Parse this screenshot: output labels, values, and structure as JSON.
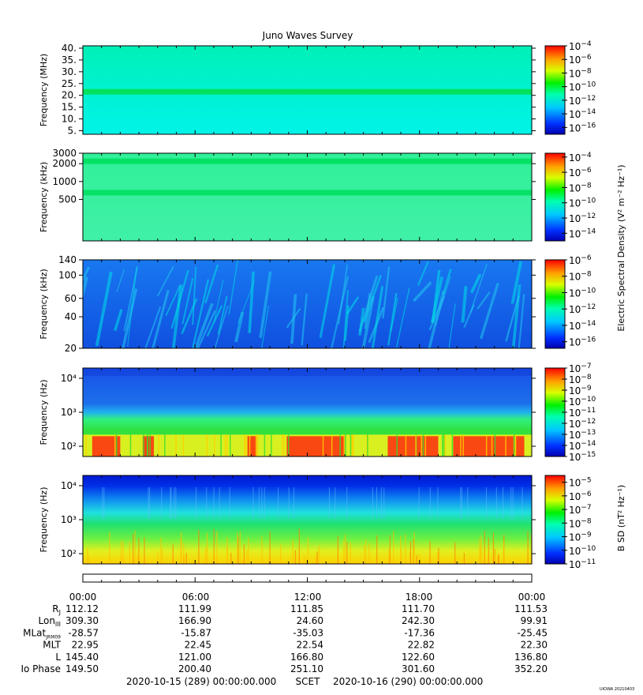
{
  "title": "Juno Waves Survey",
  "footer": {
    "start": "2020-10-15 (289) 00:00:00.000",
    "scet": "SCET",
    "end": "2020-10-16 (290) 00:00:00.000",
    "credit": "UIOWA 20210403"
  },
  "colorbar_titles": {
    "electric": "Electric Spectral Density (V² m⁻² Hz⁻¹)",
    "magnetic": "B SD (nT² Hz⁻¹)"
  },
  "ephemeris": {
    "times": [
      "00:00",
      "06:00",
      "12:00",
      "18:00",
      "00:00"
    ],
    "rows": [
      {
        "label": "R",
        "sub": "J",
        "values": [
          "112.12",
          "111.99",
          "111.85",
          "111.70",
          "111.53"
        ]
      },
      {
        "label": "Lon",
        "sub": "III",
        "values": [
          "309.30",
          "166.90",
          "24.60",
          "242.30",
          "99.91"
        ]
      },
      {
        "label": "MLat",
        "sub": "JRM09",
        "values": [
          "-28.57",
          "-15.87",
          "-35.03",
          "-17.36",
          "-25.45"
        ]
      },
      {
        "label": "MLT",
        "sub": "",
        "values": [
          "22.95",
          "22.45",
          "22.54",
          "22.82",
          "22.30"
        ]
      },
      {
        "label": "L",
        "sub": "",
        "values": [
          "145.40",
          "121.00",
          "166.80",
          "122.60",
          "136.80"
        ]
      },
      {
        "label": "Io Phase",
        "sub": "",
        "values": [
          "149.50",
          "200.40",
          "251.10",
          "301.60",
          "352.20"
        ]
      }
    ]
  },
  "chart_data": [
    {
      "type": "heatmap",
      "ylabel": "Frequency (MHz)",
      "yscale": "linear",
      "ylim": [
        3.5,
        41
      ],
      "yticks": [
        {
          "v": 5,
          "t": "5."
        },
        {
          "v": 10,
          "t": "10."
        },
        {
          "v": 15,
          "t": "15."
        },
        {
          "v": 20,
          "t": "20."
        },
        {
          "v": 25,
          "t": "25."
        },
        {
          "v": 30,
          "t": "30."
        },
        {
          "v": 35,
          "t": "35."
        },
        {
          "v": 40,
          "t": "40."
        }
      ],
      "xlim_hours": [
        0,
        24
      ],
      "features": [
        {
          "y": 21.5,
          "kind": "band",
          "color": "#00e050"
        }
      ],
      "base_color": "#00f0c0",
      "colorbar": {
        "exp_min": -17,
        "exp_max": -4,
        "ticks": [
          -4,
          -6,
          -8,
          -10,
          -12,
          -14,
          -16
        ]
      }
    },
    {
      "type": "heatmap",
      "ylabel": "Frequency (kHz)",
      "yscale": "log",
      "ylim": [
        100,
        3000
      ],
      "yticks": [
        {
          "v": 500,
          "t": "500"
        },
        {
          "v": 1000,
          "t": "1000"
        },
        {
          "v": 2000,
          "t": "2000"
        },
        {
          "v": 3000,
          "t": "3000"
        }
      ],
      "xlim_hours": [
        0,
        24
      ],
      "features": [
        {
          "y": 2200,
          "kind": "band",
          "color": "#00e060"
        },
        {
          "y": 650,
          "kind": "band",
          "color": "#00e060"
        }
      ],
      "base_color": "#20f0a0",
      "colorbar": {
        "exp_min": -15,
        "exp_max": -3.5,
        "ticks": [
          -4,
          -6,
          -8,
          -10,
          -12,
          -14
        ]
      }
    },
    {
      "type": "heatmap",
      "ylabel": "Frequency (kHz)",
      "yscale": "log",
      "ylim": [
        20,
        140
      ],
      "yticks": [
        {
          "v": 20,
          "t": "20"
        },
        {
          "v": 40,
          "t": "40"
        },
        {
          "v": 60,
          "t": "60"
        },
        {
          "v": 100,
          "t": "100"
        },
        {
          "v": 140,
          "t": "140"
        }
      ],
      "xlim_hours": [
        0,
        24
      ],
      "features": [
        {
          "kind": "streaks",
          "color": "#00c0f0"
        }
      ],
      "base_color": "#1060e8",
      "colorbar": {
        "exp_min": -16.8,
        "exp_max": -6,
        "ticks": [
          -6,
          -8,
          -10,
          -12,
          -14,
          -16
        ]
      }
    },
    {
      "type": "heatmap",
      "ylabel": "Frequency (Hz)",
      "yscale": "log",
      "ylim": [
        50,
        20000
      ],
      "yticks": [
        {
          "v": 100,
          "t": "10²"
        },
        {
          "v": 1000,
          "t": "10³"
        },
        {
          "v": 10000,
          "t": "10⁴"
        }
      ],
      "xlim_hours": [
        0,
        24
      ],
      "features": [
        {
          "kind": "lowband",
          "color": "#ff2000"
        }
      ],
      "base_color": "#2070e0",
      "colorbar": {
        "exp_min": -15,
        "exp_max": -7,
        "ticks": [
          -7,
          -8,
          -9,
          -10,
          -11,
          -12,
          -13,
          -14,
          -15
        ]
      }
    },
    {
      "type": "heatmap",
      "ylabel": "Frequency (Hz)",
      "yscale": "log",
      "ylim": [
        50,
        20000
      ],
      "yticks": [
        {
          "v": 100,
          "t": "10²"
        },
        {
          "v": 1000,
          "t": "10³"
        },
        {
          "v": 10000,
          "t": "10⁴"
        }
      ],
      "xlim_hours": [
        0,
        24
      ],
      "features": [
        {
          "kind": "gradient"
        }
      ],
      "base_color": "#20d080",
      "colorbar": {
        "exp_min": -11,
        "exp_max": -4.5,
        "ticks": [
          -5,
          -6,
          -7,
          -8,
          -9,
          -10,
          -11
        ]
      }
    }
  ]
}
